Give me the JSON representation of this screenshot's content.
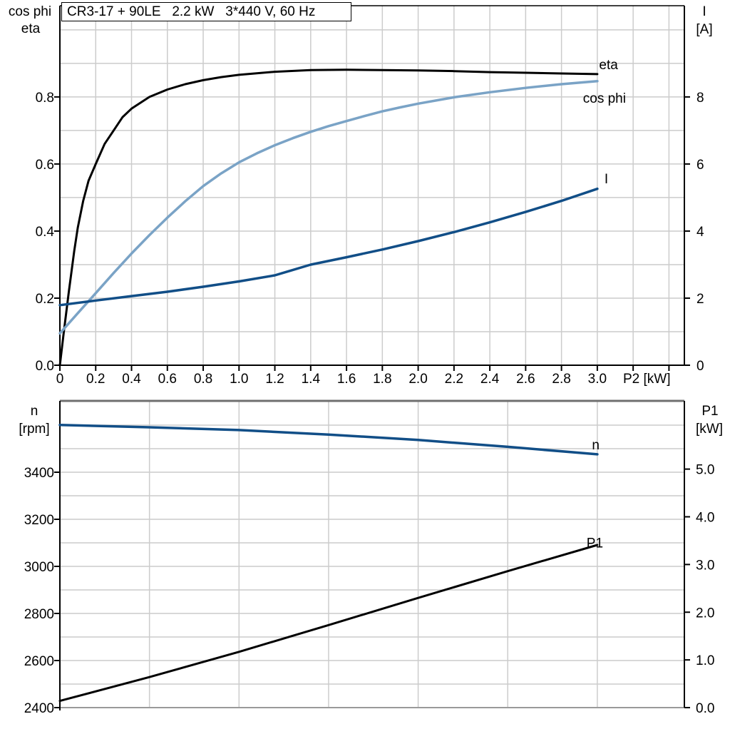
{
  "title_box": {
    "text": "CR3-17 + 90LE   2.2 kW   3*440 V, 60 Hz"
  },
  "chart_data": [
    {
      "id": "top",
      "type": "line",
      "x_axis": {
        "title": "P2 [kW]",
        "min": 0,
        "max": 3.486,
        "gridlines": [
          0.2,
          0.4,
          0.6,
          0.8,
          1.0,
          1.2,
          1.4,
          1.6,
          1.8,
          2.0,
          2.2,
          2.4,
          2.6,
          2.8,
          3.0,
          3.2,
          3.4
        ],
        "ticks": [
          [
            0,
            "0"
          ],
          [
            0.2,
            "0.2"
          ],
          [
            0.4,
            "0.4"
          ],
          [
            0.6,
            "0.6"
          ],
          [
            0.8,
            "0.8"
          ],
          [
            1.0,
            "1.0"
          ],
          [
            1.2,
            "1.2"
          ],
          [
            1.4,
            "1.4"
          ],
          [
            1.6,
            "1.6"
          ],
          [
            1.8,
            "1.8"
          ],
          [
            2.0,
            "2.0"
          ],
          [
            2.2,
            "2.2"
          ],
          [
            2.4,
            "2.4"
          ],
          [
            2.6,
            "2.6"
          ],
          [
            2.8,
            "2.8"
          ],
          [
            3.0,
            "3.0"
          ],
          [
            3.2,
            ""
          ],
          [
            3.4,
            ""
          ]
        ]
      },
      "y_left": {
        "title_lines": [
          "cos phi",
          "eta"
        ],
        "min": 0,
        "max": 1.072,
        "gridlines": [
          0.1,
          0.2,
          0.3,
          0.4,
          0.5,
          0.6,
          0.7,
          0.8,
          0.9,
          1.0
        ],
        "ticks": [
          [
            0,
            "0.0"
          ],
          [
            0.2,
            "0.2"
          ],
          [
            0.4,
            "0.4"
          ],
          [
            0.6,
            "0.6"
          ],
          [
            0.8,
            "0.8"
          ]
        ]
      },
      "y_right": {
        "title_lines": [
          "I",
          "[A]"
        ],
        "min": 0,
        "max": 10.72,
        "ticks": [
          [
            0,
            "0"
          ],
          [
            2,
            "2"
          ],
          [
            4,
            "4"
          ],
          [
            6,
            "6"
          ],
          [
            8,
            "8"
          ]
        ]
      },
      "series": [
        {
          "name": "eta",
          "axis": "left",
          "color": "#000000",
          "width": 3,
          "label": "eta",
          "label_at": [
            3.01,
            0.883
          ],
          "points": [
            [
              0,
              0
            ],
            [
              0.02,
              0.09
            ],
            [
              0.05,
              0.22
            ],
            [
              0.08,
              0.34
            ],
            [
              0.1,
              0.41
            ],
            [
              0.13,
              0.49
            ],
            [
              0.16,
              0.55
            ],
            [
              0.2,
              0.6
            ],
            [
              0.25,
              0.66
            ],
            [
              0.3,
              0.7
            ],
            [
              0.35,
              0.74
            ],
            [
              0.4,
              0.765
            ],
            [
              0.5,
              0.8
            ],
            [
              0.6,
              0.822
            ],
            [
              0.7,
              0.838
            ],
            [
              0.8,
              0.85
            ],
            [
              0.9,
              0.859
            ],
            [
              1.0,
              0.866
            ],
            [
              1.2,
              0.875
            ],
            [
              1.4,
              0.88
            ],
            [
              1.6,
              0.881
            ],
            [
              1.8,
              0.88
            ],
            [
              2.0,
              0.879
            ],
            [
              2.2,
              0.877
            ],
            [
              2.4,
              0.874
            ],
            [
              2.6,
              0.872
            ],
            [
              2.8,
              0.87
            ],
            [
              3.0,
              0.868
            ]
          ]
        },
        {
          "name": "cos phi",
          "axis": "left",
          "color": "#7aa3c6",
          "width": 3.5,
          "label": "cos phi",
          "label_at": [
            2.92,
            0.783
          ],
          "points": [
            [
              0,
              0.095
            ],
            [
              0.1,
              0.155
            ],
            [
              0.2,
              0.215
            ],
            [
              0.3,
              0.275
            ],
            [
              0.4,
              0.333
            ],
            [
              0.5,
              0.388
            ],
            [
              0.6,
              0.44
            ],
            [
              0.7,
              0.489
            ],
            [
              0.8,
              0.534
            ],
            [
              0.9,
              0.572
            ],
            [
              1.0,
              0.605
            ],
            [
              1.1,
              0.632
            ],
            [
              1.2,
              0.656
            ],
            [
              1.3,
              0.677
            ],
            [
              1.4,
              0.696
            ],
            [
              1.5,
              0.713
            ],
            [
              1.6,
              0.728
            ],
            [
              1.7,
              0.743
            ],
            [
              1.8,
              0.757
            ],
            [
              1.9,
              0.769
            ],
            [
              2.0,
              0.78
            ],
            [
              2.2,
              0.799
            ],
            [
              2.4,
              0.814
            ],
            [
              2.6,
              0.827
            ],
            [
              2.8,
              0.838
            ],
            [
              3.0,
              0.847
            ]
          ]
        },
        {
          "name": "I",
          "axis": "right",
          "color": "#114e87",
          "width": 3.5,
          "label": "I",
          "label_at": [
            3.04,
            5.42
          ],
          "points": [
            [
              0,
              1.79
            ],
            [
              0.2,
              1.93
            ],
            [
              0.4,
              2.06
            ],
            [
              0.6,
              2.19
            ],
            [
              0.8,
              2.34
            ],
            [
              1.0,
              2.5
            ],
            [
              1.2,
              2.68
            ],
            [
              1.4,
              3.0
            ],
            [
              1.6,
              3.22
            ],
            [
              1.8,
              3.45
            ],
            [
              2.0,
              3.7
            ],
            [
              2.2,
              3.97
            ],
            [
              2.4,
              4.26
            ],
            [
              2.6,
              4.57
            ],
            [
              2.8,
              4.9
            ],
            [
              3.0,
              5.26
            ]
          ]
        }
      ]
    },
    {
      "id": "bottom",
      "type": "line",
      "x_axis": {
        "title": "",
        "min": 0,
        "max": 3.486,
        "gridlines": [
          0.5,
          1.0,
          1.5,
          2.0,
          2.5,
          3.0
        ],
        "ticks": []
      },
      "y_left": {
        "title_lines": [
          "n",
          "[rpm]"
        ],
        "min": 2400,
        "max": 3703,
        "gridlines": [
          2500,
          2600,
          2700,
          2800,
          2900,
          3000,
          3100,
          3200,
          3300,
          3400,
          3500,
          3600
        ],
        "ticks": [
          [
            2400,
            "2400"
          ],
          [
            2600,
            "2600"
          ],
          [
            2800,
            "2800"
          ],
          [
            3000,
            "3000"
          ],
          [
            3200,
            "3200"
          ],
          [
            3400,
            "3400"
          ]
        ]
      },
      "y_right": {
        "title_lines": [
          "P1",
          "[kW]"
        ],
        "min": 0,
        "max": 6.43,
        "ticks": [
          [
            0,
            "0.0"
          ],
          [
            1,
            "1.0"
          ],
          [
            2,
            "2.0"
          ],
          [
            3,
            "3.0"
          ],
          [
            4,
            "4.0"
          ],
          [
            5,
            "5.0"
          ]
        ]
      },
      "series": [
        {
          "name": "n",
          "axis": "left",
          "color": "#114e87",
          "width": 3.5,
          "label": "n",
          "label_at": [
            2.97,
            3497
          ],
          "points": [
            [
              0,
              3601
            ],
            [
              0.5,
              3591
            ],
            [
              1.0,
              3579
            ],
            [
              1.5,
              3560
            ],
            [
              2.0,
              3537
            ],
            [
              2.5,
              3508
            ],
            [
              3.0,
              3476
            ]
          ]
        },
        {
          "name": "P1",
          "axis": "right",
          "color": "#000000",
          "width": 3,
          "label": "P1",
          "label_at": [
            2.94,
            3.36
          ],
          "points": [
            [
              0,
              0.14
            ],
            [
              0.5,
              0.64
            ],
            [
              1.0,
              1.17
            ],
            [
              1.5,
              1.73
            ],
            [
              2.0,
              2.3
            ],
            [
              2.5,
              2.86
            ],
            [
              3.0,
              3.41
            ]
          ]
        }
      ]
    }
  ]
}
